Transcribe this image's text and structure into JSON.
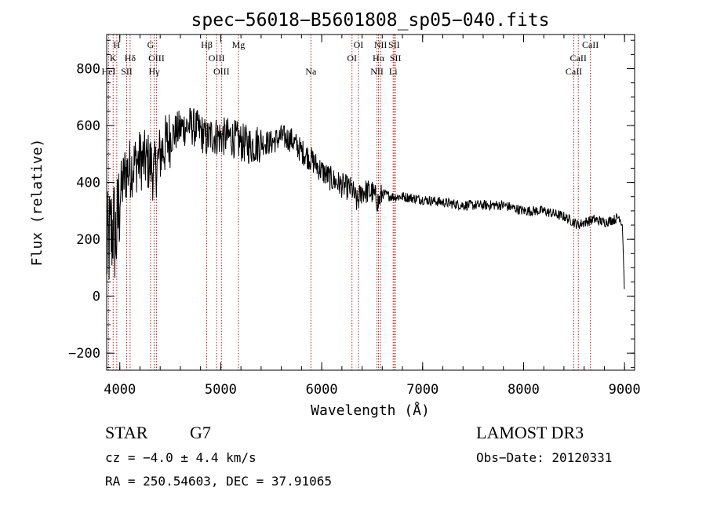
{
  "chart_data": {
    "type": "line",
    "title": "spec−56018−B5601808_sp05−040.fits",
    "xlabel": "Wavelength (Å)",
    "ylabel": "Flux (relative)",
    "xlim": [
      3870,
      9100
    ],
    "ylim": [
      -260,
      920
    ],
    "x_ticks": [
      4000,
      5000,
      6000,
      7000,
      8000,
      9000
    ],
    "x_tick_labels": [
      "4000",
      "5000",
      "6000",
      "7000",
      "8000",
      "9000"
    ],
    "y_ticks": [
      -200,
      0,
      200,
      400,
      600,
      800
    ],
    "y_tick_labels": [
      "−200",
      "0",
      "200",
      "400",
      "600",
      "800"
    ],
    "x_minor_step": 200,
    "y_minor_step": 50,
    "grid": false,
    "line_color": "#000000",
    "marker_color": "#b22222",
    "series": [
      {
        "name": "flux",
        "anchors_x": [
          3870,
          3900,
          3935,
          3960,
          3985,
          4000,
          4050,
          4100,
          4200,
          4300,
          4340,
          4400,
          4500,
          4600,
          4700,
          4800,
          4861,
          4900,
          5000,
          5100,
          5200,
          5300,
          5400,
          5500,
          5600,
          5700,
          5800,
          5900,
          6000,
          6100,
          6200,
          6300,
          6350,
          6400,
          6500,
          6563,
          6600,
          6700,
          6800,
          7000,
          7200,
          7400,
          7600,
          7800,
          8000,
          8200,
          8400,
          8500,
          8540,
          8600,
          8700,
          8800,
          8900,
          8950,
          8980,
          9000
        ],
        "anchors_y": [
          150,
          200,
          250,
          200,
          280,
          350,
          430,
          450,
          480,
          470,
          430,
          500,
          560,
          590,
          600,
          580,
          550,
          565,
          560,
          560,
          540,
          530,
          540,
          540,
          560,
          550,
          510,
          480,
          440,
          410,
          390,
          375,
          330,
          370,
          365,
          330,
          360,
          350,
          350,
          340,
          330,
          320,
          320,
          320,
          300,
          300,
          280,
          260,
          250,
          260,
          270,
          260,
          270,
          280,
          250,
          0
        ],
        "noise_amplitude": {
          "blue_below_4000": 200,
          "4000_to_4500": 110,
          "4500_to_5400": 70,
          "5400_to_6600": 45,
          "red_above_6600": 18
        },
        "sample_step": 4
      }
    ],
    "line_markers": [
      {
        "label": "H",
        "wavelength": 3970,
        "row": 0
      },
      {
        "label": "K",
        "wavelength": 3934,
        "row": 1
      },
      {
        "label": "HeI",
        "wavelength": 3889,
        "row": 2
      },
      {
        "label": "SII",
        "wavelength": 4068,
        "row": 2
      },
      {
        "label": "Hδ",
        "wavelength": 4102,
        "row": 1
      },
      {
        "label": "G",
        "wavelength": 4305,
        "row": 0
      },
      {
        "label": "OIII",
        "wavelength": 4363,
        "row": 1
      },
      {
        "label": "Hγ",
        "wavelength": 4340,
        "row": 2
      },
      {
        "label": "Hβ",
        "wavelength": 4861,
        "row": 0
      },
      {
        "label": "OIII",
        "wavelength": 4959,
        "row": 1
      },
      {
        "label": "OIII",
        "wavelength": 5007,
        "row": 2
      },
      {
        "label": "Mg",
        "wavelength": 5175,
        "row": 0
      },
      {
        "label": "Na",
        "wavelength": 5893,
        "row": 2
      },
      {
        "label": "OI",
        "wavelength": 6364,
        "row": 0
      },
      {
        "label": "OI",
        "wavelength": 6300,
        "row": 1
      },
      {
        "label": "NII",
        "wavelength": 6583,
        "row": 0
      },
      {
        "label": "Hα",
        "wavelength": 6563,
        "row": 1
      },
      {
        "label": "NII",
        "wavelength": 6548,
        "row": 2
      },
      {
        "label": "SII",
        "wavelength": 6717,
        "row": 0
      },
      {
        "label": "SII",
        "wavelength": 6731,
        "row": 1
      },
      {
        "label": "Li",
        "wavelength": 6708,
        "row": 2
      },
      {
        "label": "CaII",
        "wavelength": 8662,
        "row": 0
      },
      {
        "label": "CaII",
        "wavelength": 8542,
        "row": 1
      },
      {
        "label": "CaII",
        "wavelength": 8498,
        "row": 2
      }
    ]
  },
  "info": {
    "object_class": "STAR",
    "subclass": "G7",
    "survey": "LAMOST DR3",
    "cz": "cz = −4.0 ± 4.4 km/s",
    "obs_date": "Obs−Date: 20120331",
    "coords": "RA = 250.54603, DEC =  37.91065"
  }
}
